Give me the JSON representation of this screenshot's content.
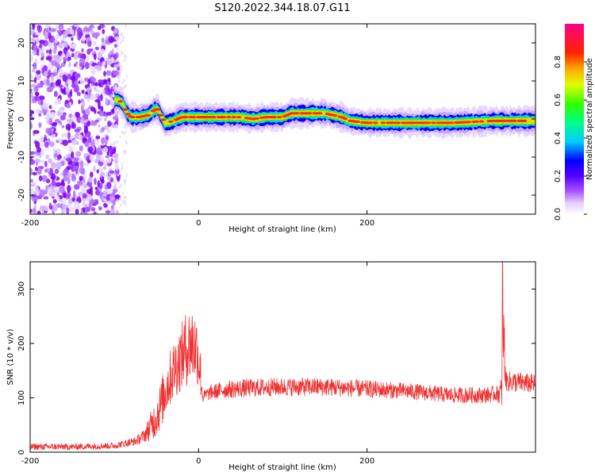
{
  "title": "S120.2022.344.18.07.G11",
  "chart_data": [
    {
      "type": "heatmap",
      "xlabel": "Height of straight line (km)",
      "ylabel": "Frequency (Hz)",
      "xlim": [
        -200,
        400
      ],
      "ylim": [
        -25,
        25
      ],
      "xticks": [
        "-200",
        "0",
        "200"
      ],
      "yticks": [
        "-20",
        "-10",
        "0",
        "10",
        "20"
      ],
      "colorbar": {
        "label": "Normalized spectral amplitude",
        "range": [
          0,
          1
        ],
        "ticks": [
          "0.0",
          "0.2",
          "0.4",
          "0.6",
          "0.8"
        ]
      },
      "ridge": {
        "x": [
          -100,
          -95,
          -90,
          -85,
          -80,
          -70,
          -60,
          -52,
          -48,
          -45,
          -40,
          -38,
          -30,
          -20,
          0,
          20,
          50,
          65,
          80,
          100,
          110,
          150,
          160,
          170,
          180,
          200,
          230,
          260,
          300,
          350,
          400
        ],
        "freq": [
          5,
          5,
          4,
          1.5,
          0.5,
          0.5,
          1,
          2.5,
          2.5,
          1,
          -1,
          -1,
          -0.5,
          0.5,
          0.5,
          0.5,
          0.5,
          0,
          0.5,
          0.5,
          1.5,
          1.5,
          1,
          0.5,
          -0.5,
          -1,
          -1,
          -1,
          -1,
          -0.5,
          -0.5
        ]
      }
    },
    {
      "type": "line",
      "xlabel": "Height of straight line (km)",
      "ylabel": "SNR (10 * v/v)",
      "xlim": [
        -200,
        400
      ],
      "ylim": [
        0,
        350
      ],
      "xticks": [
        "-200",
        "0",
        "200"
      ],
      "yticks": [
        "0",
        "100",
        "200",
        "300"
      ],
      "color": "#ee3333",
      "envelope": {
        "x": [
          -200,
          -150,
          -100,
          -75,
          -65,
          -58,
          -52,
          -45,
          -38,
          -30,
          -22,
          -15,
          -8,
          -2,
          2,
          5,
          8,
          15,
          30,
          50,
          90,
          150,
          250,
          300,
          340,
          355,
          360,
          361,
          365,
          370,
          400
        ],
        "base": [
          10,
          10,
          12,
          20,
          30,
          45,
          60,
          85,
          120,
          150,
          170,
          190,
          200,
          190,
          150,
          100,
          105,
          110,
          115,
          117,
          120,
          120,
          112,
          105,
          105,
          108,
          110,
          250,
          130,
          130,
          125
        ],
        "amp": [
          6,
          6,
          6,
          8,
          12,
          25,
          35,
          45,
          50,
          55,
          60,
          70,
          75,
          65,
          50,
          10,
          12,
          14,
          16,
          17,
          17,
          17,
          15,
          15,
          15,
          15,
          30,
          100,
          18,
          20,
          18
        ]
      }
    }
  ]
}
